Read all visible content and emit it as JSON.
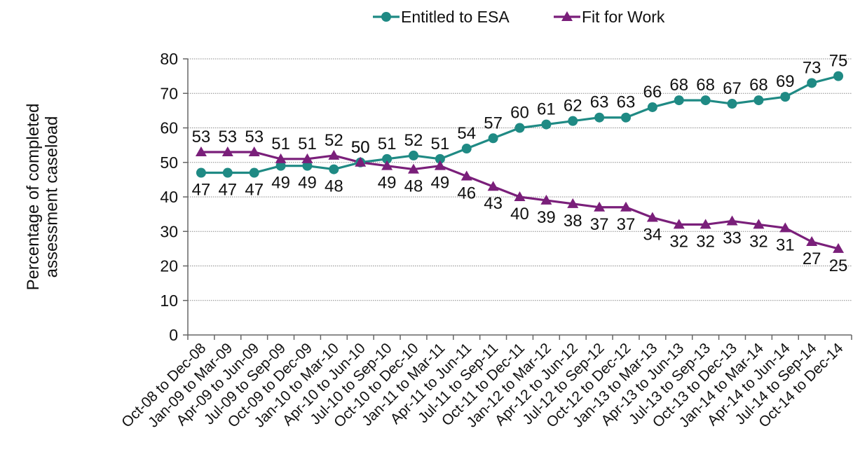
{
  "chart_data": {
    "type": "line",
    "title": "",
    "xlabel": "",
    "ylabel": "Percentage of completed assessment caseload",
    "ylabel_lines": [
      "Percentage of completed",
      "assessment caseload"
    ],
    "ylim": [
      0,
      80
    ],
    "yticks": [
      0,
      10,
      20,
      30,
      40,
      50,
      60,
      70,
      80
    ],
    "grid": true,
    "legend_position": "top",
    "categories": [
      "Oct-08 to Dec-08",
      "Jan-09 to Mar-09",
      "Apr-09 to Jun-09",
      "Jul-09 to Sep-09",
      "Oct-09 to Dec-09",
      "Jan-10 to Mar-10",
      "Apr-10 to Jun-10",
      "Jul-10 to Sep-10",
      "Oct-10 to Dec-10",
      "Jan-11 to Mar-11",
      "Apr-11 to Jun-11",
      "Jul-11 to Sep-11",
      "Oct-11 to Dec-11",
      "Jan-12 to Mar-12",
      "Apr-12 to Jun-12",
      "Jul-12 to Sep-12",
      "Oct-12 to Dec-12",
      "Jan-13 to Mar-13",
      "Apr-13 to Jun-13",
      "Jul-13 to Sep-13",
      "Oct-13 to Dec-13",
      "Jan-14 to Mar-14",
      "Apr-14 to Jun-14",
      "Jul-14 to Sep-14",
      "Oct-14 to Dec-14"
    ],
    "series": [
      {
        "name": "Entitled to ESA",
        "color": "#1f8a84",
        "marker": "circle",
        "values": [
          47,
          47,
          47,
          49,
          49,
          48,
          50,
          51,
          52,
          51,
          54,
          57,
          60,
          61,
          62,
          63,
          63,
          66,
          68,
          68,
          67,
          68,
          69,
          73,
          75
        ]
      },
      {
        "name": "Fit for Work",
        "color": "#7a1f7a",
        "marker": "triangle",
        "values": [
          53,
          53,
          53,
          51,
          51,
          52,
          50,
          49,
          48,
          49,
          46,
          43,
          40,
          39,
          38,
          37,
          37,
          34,
          32,
          32,
          33,
          32,
          31,
          27,
          25
        ]
      }
    ]
  }
}
